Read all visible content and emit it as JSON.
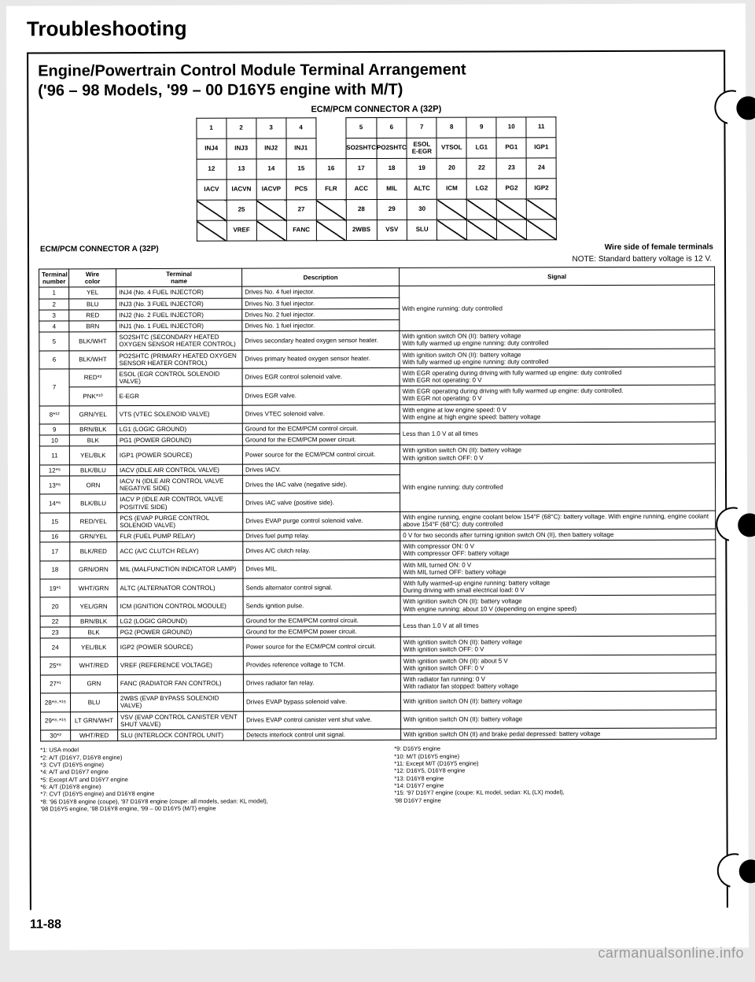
{
  "title": "Troubleshooting",
  "subtitle_line1": "Engine/Powertrain Control Module Terminal Arrangement",
  "subtitle_line2": "('96 – 98 Models, '99 – 00 D16Y5 engine with M/T)",
  "connector_label": "ECM/PCM CONNECTOR A (32P)",
  "below_left": "ECM/PCM CONNECTOR A (32P)",
  "below_right": "Wire side of female terminals",
  "note": "NOTE: Standard battery voltage is 12 V.",
  "connector_rows": [
    [
      "1",
      "2",
      "3",
      "4",
      "",
      "5",
      "6",
      "7",
      "8",
      "9",
      "10",
      "11"
    ],
    [
      "INJ4",
      "INJ3",
      "INJ2",
      "INJ1",
      "",
      "SO2SHTC",
      "PO2SHTC",
      "ESOL\nE-EGR",
      "VTSOL",
      "LG1",
      "PG1",
      "IGP1"
    ],
    [
      "12",
      "13",
      "14",
      "15",
      "16",
      "17",
      "18",
      "19",
      "20",
      "22",
      "23",
      "24"
    ],
    [
      "IACV",
      "IACVN",
      "IACVP",
      "PCS",
      "FLR",
      "ACC",
      "MIL",
      "ALTC",
      "ICM",
      "LG2",
      "PG2",
      "IGP2"
    ],
    [
      "",
      "25",
      "",
      "27",
      "",
      "28",
      "29",
      "30",
      "",
      "",
      "",
      ""
    ],
    [
      "",
      "VREF",
      "",
      "FANC",
      "",
      "2WBS",
      "VSV",
      "SLU",
      "",
      "",
      "",
      ""
    ]
  ],
  "connector_diag": {
    "2": [
      4
    ],
    "3": [
      4,
      9
    ],
    "4": [
      0,
      2,
      4,
      8,
      9,
      10,
      11
    ],
    "5": [
      0,
      2,
      4,
      8,
      9,
      10,
      11
    ]
  },
  "headers": {
    "num": "Terminal\nnumber",
    "wire": "Wire\ncolor",
    "name": "Terminal\nname",
    "desc": "Description",
    "sig": "Signal"
  },
  "rows": [
    {
      "n": "1",
      "w": "YEL",
      "name": "INJ4 (No. 4 FUEL INJECTOR)",
      "desc": "Drives No. 4 fuel injector.",
      "sig": "With engine running: duty controlled",
      "sigspan": 4
    },
    {
      "n": "2",
      "w": "BLU",
      "name": "INJ3 (No. 3 FUEL INJECTOR)",
      "desc": "Drives No. 3 fuel injector."
    },
    {
      "n": "3",
      "w": "RED",
      "name": "INJ2 (No. 2 FUEL INJECTOR)",
      "desc": "Drives No. 2 fuel injector."
    },
    {
      "n": "4",
      "w": "BRN",
      "name": "INJ1 (No. 1 FUEL INJECTOR)",
      "desc": "Drives No. 1 fuel injector."
    },
    {
      "n": "5",
      "w": "BLK/WHT",
      "name": "SO2SHTC (SECONDARY HEATED OXYGEN SENSOR HEATER CONTROL)",
      "desc": "Drives secondary heated oxygen sensor heater.",
      "sig": "With ignition switch ON (II): battery voltage\nWith fully warmed up engine running: duty controlled"
    },
    {
      "n": "6",
      "w": "BLK/WHT",
      "name": "PO2SHTC (PRIMARY HEATED OXYGEN SENSOR HEATER CONTROL)",
      "desc": "Drives primary heated oxygen sensor heater.",
      "sig": "With ignition switch ON (II): battery voltage\nWith fully warmed up engine running: duty controlled"
    },
    {
      "n": "7",
      "w": "RED*²",
      "name": "ESOL (EGR CONTROL SOLENOID VALVE)",
      "desc": "Drives EGR control solenoid valve.",
      "sig": "With EGR operating during driving with fully warmed up engine: duty controlled\nWith EGR not operating: 0 V",
      "nspan": 2
    },
    {
      "w": "PNK*¹⁰",
      "name": "E-EGR",
      "desc": "Drives EGR valve.",
      "sig": "With EGR operating during driving with fully warmed up engine: duty controlled.\nWith EGR not operating: 0 V"
    },
    {
      "n": "8*¹²",
      "w": "GRN/YEL",
      "name": "VTS (VTEC SOLENOID VALVE)",
      "desc": "Drives VTEC solenoid valve.",
      "sig": "With engine at low engine speed: 0 V\nWith engine at high engine speed: battery voltage"
    },
    {
      "n": "9",
      "w": "BRN/BLK",
      "name": "LG1 (LOGIC GROUND)",
      "desc": "Ground for the ECM/PCM control circuit.",
      "sig": "Less than 1.0 V at all times",
      "sigspan": 2
    },
    {
      "n": "10",
      "w": "BLK",
      "name": "PG1 (POWER GROUND)",
      "desc": "Ground for the ECM/PCM power circuit."
    },
    {
      "n": "11",
      "w": "YEL/BLK",
      "name": "IGP1 (POWER SOURCE)",
      "desc": "Power source for the ECM/PCM control circuit.",
      "sig": "With ignition switch ON (II): battery voltage\nWith ignition switch OFF: 0 V"
    },
    {
      "n": "12*⁵",
      "w": "BLK/BLU",
      "name": "IACV (IDLE AIR CONTROL VALVE)",
      "desc": "Drives IACV.",
      "sig": "With engine running: duty controlled",
      "sigspan": 3
    },
    {
      "n": "13*⁶",
      "w": "ORN",
      "name": "IACV N (IDLE AIR CONTROL VALVE NEGATIVE SIDE)",
      "desc": "Drives the IAC valve (negative side)."
    },
    {
      "n": "14*⁶",
      "w": "BLK/BLU",
      "name": "IACV P (IDLE AIR CONTROL VALVE POSITIVE SIDE)",
      "desc": "Drives IAC valve (positive side)."
    },
    {
      "n": "15",
      "w": "RED/YEL",
      "name": "PCS (EVAP PURGE CONTROL SOLENOID VALVE)",
      "desc": "Drives EVAP purge control solenoid valve.",
      "sig": "With engine running, engine coolant below 154°F (68°C): battery voltage. With engine running, engine coolant above 154°F (68°C): duty controlled"
    },
    {
      "n": "16",
      "w": "GRN/YEL",
      "name": "FLR (FUEL PUMP RELAY)",
      "desc": "Drives fuel pump relay.",
      "sig": "0 V for two seconds after turning ignition switch ON (II), then battery voltage"
    },
    {
      "n": "17",
      "w": "BLK/RED",
      "name": "ACC (A/C CLUTCH RELAY)",
      "desc": "Drives A/C clutch relay.",
      "sig": "With compressor ON: 0 V\nWith compressor OFF: battery voltage"
    },
    {
      "n": "18",
      "w": "GRN/ORN",
      "name": "MIL (MALFUNCTION INDICATOR LAMP)",
      "desc": "Drives MIL.",
      "sig": "With MIL turned ON: 0 V\nWith MIL turned OFF: battery voltage"
    },
    {
      "n": "19*¹",
      "w": "WHT/GRN",
      "name": "ALTC (ALTERNATOR CONTROL)",
      "desc": "Sends alternator control signal.",
      "sig": "With fully warmed-up engine running: battery voltage\nDuring driving with small electrical load: 0 V"
    },
    {
      "n": "20",
      "w": "YEL/GRN",
      "name": "ICM (IGNITION CONTROL MODULE)",
      "desc": "Sends ignition pulse.",
      "sig": "With ignition switch ON (II): battery voltage\nWith engine running: about 10 V (depending on engine speed)"
    },
    {
      "n": "22",
      "w": "BRN/BLK",
      "name": "LG2 (LOGIC GROUND)",
      "desc": "Ground for the ECM/PCM control circuit.",
      "sig": "Less than 1.0 V at all times",
      "sigspan": 2
    },
    {
      "n": "23",
      "w": "BLK",
      "name": "PG2 (POWER GROUND)",
      "desc": "Ground for the ECM/PCM power circuit."
    },
    {
      "n": "24",
      "w": "YEL/BLK",
      "name": "IGP2 (POWER SOURCE)",
      "desc": "Power source for the ECM/PCM control circuit.",
      "sig": "With ignition switch ON (II): battery voltage\nWith ignition switch OFF: 0 V"
    },
    {
      "n": "25*⁸",
      "w": "WHT/RED",
      "name": "VREF (REFERENCE VOLTAGE)",
      "desc": "Provides reference voltage to TCM.",
      "sig": "With ignition switch ON (II): about 5 V\nWith ignition switch OFF: 0 V"
    },
    {
      "n": "27*¹",
      "w": "GRN",
      "name": "FANC (RADIATOR FAN CONTROL)",
      "desc": "Drives radiator fan relay.",
      "sig": "With radiator fan running: 0 V\nWith radiator fan stopped: battery voltage"
    },
    {
      "n": "28*⁸·*¹⁵",
      "w": "BLU",
      "name": "2WBS (EVAP BYPASS SOLENOID VALVE)",
      "desc": "Drives EVAP bypass solenoid valve.",
      "sig": "With ignition switch ON (II): battery voltage"
    },
    {
      "n": "29*⁸·*¹⁵",
      "w": "LT GRN/WHT",
      "name": "VSV (EVAP CONTROL CANISTER VENT SHUT VALVE)",
      "desc": "Drives EVAP control canister vent shut valve.",
      "sig": "With ignition switch ON (II): battery voltage"
    },
    {
      "n": "30*²",
      "w": "WHT/RED",
      "name": "SLU (INTERLOCK CONTROL UNIT)",
      "desc": "Detects interlock control unit signal.",
      "sig": "With ignition switch ON (II) and brake pedal depressed: battery voltage"
    }
  ],
  "footnotes_left": "*1: USA model\n*2: A/T (D16Y7, D16Y8 engine)\n*3: CVT (D16Y5 engine)\n*4: A/T and D16Y7 engine\n*5: Except A/T and D16Y7 engine\n*6: A/T (D16Y8 engine)\n*7: CVT (D16Y5 engine) and D16Y8 engine\n*8: '96 D16Y8 engine (coupe), '97 D16Y8 engine (coupe: all models, sedan: KL model),\n    '98 D16Y5 engine, '98 D16Y8 engine, '99 – 00 D16Y5 (M/T) engine",
  "footnotes_right": "*9: D16Y5 engine\n*10: M/T (D16Y5 engine)\n*11: Except M/T (D16Y5 engine)\n*12: D16Y5, D16Y8 engine\n*13: D16Y8 engine\n*14: D16Y7 engine\n*15: '97 D16Y7 engine (coupe: KL model, sedan: KL (LX) model),\n     '98 D16Y7 engine",
  "page_number": "11-88",
  "watermark": "carmanualsonline.info"
}
